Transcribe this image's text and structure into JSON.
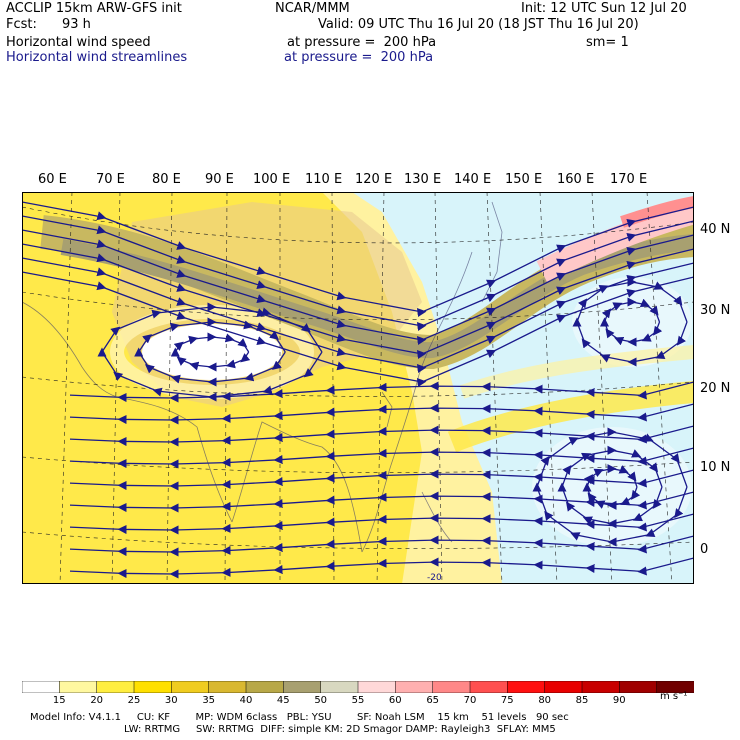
{
  "header": {
    "left_line1": "ACCLIP 15km ARW-GFS init",
    "left_line2_label": "Fcst:",
    "left_line2_value": "93 h",
    "left_line3": "Horizontal wind speed",
    "left_line4": "Horizontal wind streamlines",
    "center_line1": "NCAR/MMM",
    "center_line2": "Valid: 09 UTC Thu 16 Jul 20 (18 JST Thu 16 Jul 20)",
    "center_line3": "at pressure =  200 hPa",
    "center_line4": "at pressure =  200 hPa",
    "right_line1": "Init: 12 UTC Sun 12 Jul 20",
    "right_line3": "sm= 1"
  },
  "map": {
    "lon_labels": [
      "60 E",
      "70 E",
      "80 E",
      "90 E",
      "100 E",
      "110 E",
      "120 E",
      "130 E",
      "140 E",
      "150 E",
      "160 E",
      "170 E"
    ],
    "lat_labels": [
      "40 N",
      "30 N",
      "20 N",
      "10 N",
      "0"
    ],
    "annotation": "-20"
  },
  "colorbar": {
    "labels": [
      "15",
      "20",
      "25",
      "30",
      "35",
      "40",
      "45",
      "50",
      "55",
      "60",
      "65",
      "70",
      "75",
      "80",
      "85",
      "90"
    ],
    "unit": "m s⁻¹",
    "colors": [
      "#ffffff",
      "#fff8a0",
      "#ffee40",
      "#ffe000",
      "#f0cc20",
      "#d9b830",
      "#b8a848",
      "#a8a070",
      "#d8d8c0",
      "#ffd8d8",
      "#ffb0b0",
      "#ff8888",
      "#ff5050",
      "#ff1010",
      "#e80000",
      "#c80000",
      "#a00000",
      "#700000"
    ]
  },
  "footer": {
    "line1": "Model Info: V4.1.1     CU: KF        MP: WDM 6class   PBL: YSU        SF: Noah LSM    15 km    51 levels   90 sec",
    "line2": "LW: RRTMG     SW: RRTMG  DIFF: simple KM: 2D Smagor DAMP: Rayleigh3  SFLAY: MM5"
  }
}
